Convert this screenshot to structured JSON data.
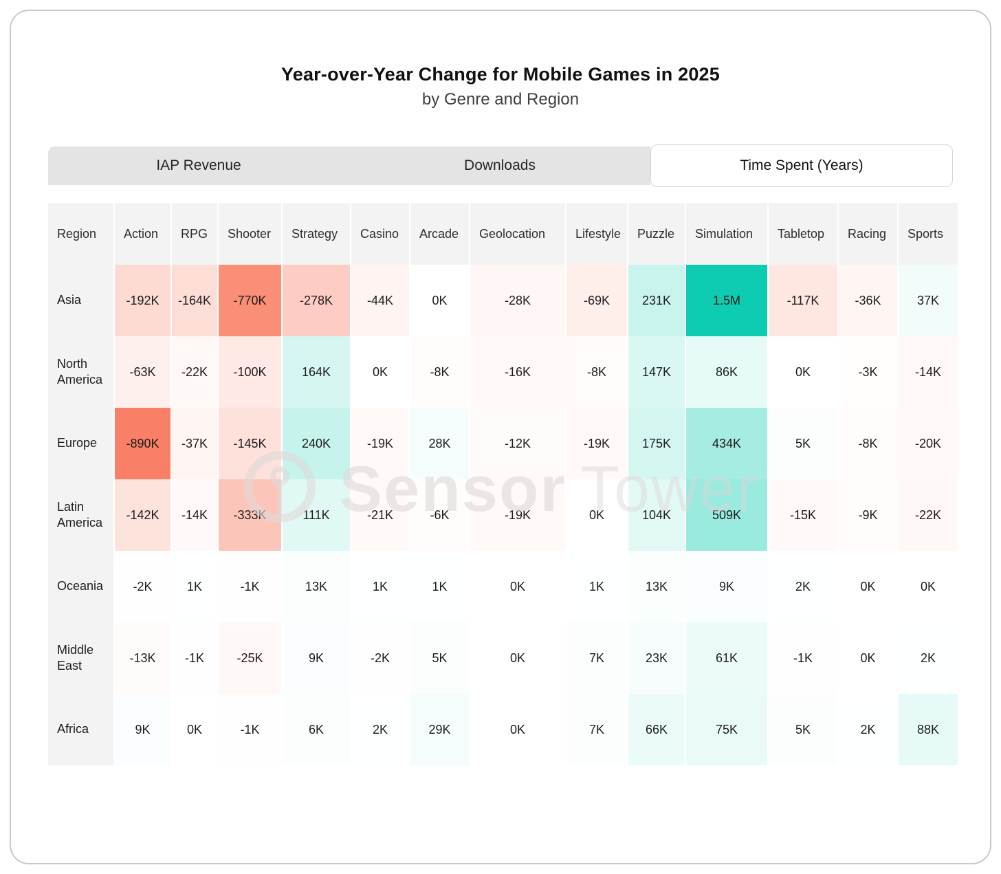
{
  "header": {
    "title": "Year-over-Year Change for Mobile Games in 2025",
    "subtitle": "by Genre and Region"
  },
  "tabs": [
    {
      "label": "IAP Revenue",
      "active": false
    },
    {
      "label": "Downloads",
      "active": false
    },
    {
      "label": "Time Spent (Years)",
      "active": true
    }
  ],
  "watermark": {
    "icon": "sensor-tower-logo",
    "text_bold": "Sensor",
    "text_light": "Tower"
  },
  "chart_data": {
    "type": "heatmap",
    "title": "Year-over-Year Change for Mobile Games in 2025",
    "subtitle": "by Genre and Region",
    "active_metric": "Time Spent (Years)",
    "row_header": "Region",
    "columns": [
      "Action",
      "RPG",
      "Shooter",
      "Strategy",
      "Casino",
      "Arcade",
      "Geolocation",
      "Lifestyle",
      "Puzzle",
      "Simulation",
      "Tabletop",
      "Racing",
      "Sports"
    ],
    "rows": [
      {
        "region": "Asia",
        "labels": [
          "-192K",
          "-164K",
          "-770K",
          "-278K",
          "-44K",
          "0K",
          "-28K",
          "-69K",
          "231K",
          "1.5M",
          "-117K",
          "-36K",
          "37K"
        ],
        "values_k": [
          -192,
          -164,
          -770,
          -278,
          -44,
          0,
          -28,
          -69,
          231,
          1500,
          -117,
          -36,
          37
        ]
      },
      {
        "region": "North America",
        "labels": [
          "-63K",
          "-22K",
          "-100K",
          "164K",
          "0K",
          "-8K",
          "-16K",
          "-8K",
          "147K",
          "86K",
          "0K",
          "-3K",
          "-14K"
        ],
        "values_k": [
          -63,
          -22,
          -100,
          164,
          0,
          -8,
          -16,
          -8,
          147,
          86,
          0,
          -3,
          -14
        ]
      },
      {
        "region": "Europe",
        "labels": [
          "-890K",
          "-37K",
          "-145K",
          "240K",
          "-19K",
          "28K",
          "-12K",
          "-19K",
          "175K",
          "434K",
          "5K",
          "-8K",
          "-20K"
        ],
        "values_k": [
          -890,
          -37,
          -145,
          240,
          -19,
          28,
          -12,
          -19,
          175,
          434,
          5,
          -8,
          -20
        ]
      },
      {
        "region": "Latin America",
        "labels": [
          "-142K",
          "-14K",
          "-333K",
          "111K",
          "-21K",
          "-6K",
          "-19K",
          "0K",
          "104K",
          "509K",
          "-15K",
          "-9K",
          "-22K"
        ],
        "values_k": [
          -142,
          -14,
          -333,
          111,
          -21,
          -6,
          -19,
          0,
          104,
          509,
          -15,
          -9,
          -22
        ]
      },
      {
        "region": "Oceania",
        "labels": [
          "-2K",
          "1K",
          "-1K",
          "13K",
          "1K",
          "1K",
          "0K",
          "1K",
          "13K",
          "9K",
          "2K",
          "0K",
          "0K"
        ],
        "values_k": [
          -2,
          1,
          -1,
          13,
          1,
          1,
          0,
          1,
          13,
          9,
          2,
          0,
          0
        ]
      },
      {
        "region": "Middle East",
        "labels": [
          "-13K",
          "-1K",
          "-25K",
          "9K",
          "-2K",
          "5K",
          "0K",
          "7K",
          "23K",
          "61K",
          "-1K",
          "0K",
          "2K"
        ],
        "values_k": [
          -13,
          -1,
          -25,
          9,
          -2,
          5,
          0,
          7,
          23,
          61,
          -1,
          0,
          2
        ]
      },
      {
        "region": "Africa",
        "labels": [
          "9K",
          "0K",
          "-1K",
          "6K",
          "2K",
          "29K",
          "0K",
          "7K",
          "66K",
          "75K",
          "5K",
          "2K",
          "88K"
        ],
        "values_k": [
          9,
          0,
          -1,
          6,
          2,
          29,
          0,
          7,
          66,
          75,
          5,
          2,
          88
        ]
      }
    ],
    "colors": {
      "positive_max": "#0dccb2",
      "negative_max": "#f98066",
      "neutral": "#ffffff",
      "header_bg": "#f3f3f3"
    },
    "scale": {
      "max_positive_k": 1500,
      "max_negative_k": 890,
      "gamma": 0.8
    },
    "legend_position": "none",
    "grid": false
  }
}
